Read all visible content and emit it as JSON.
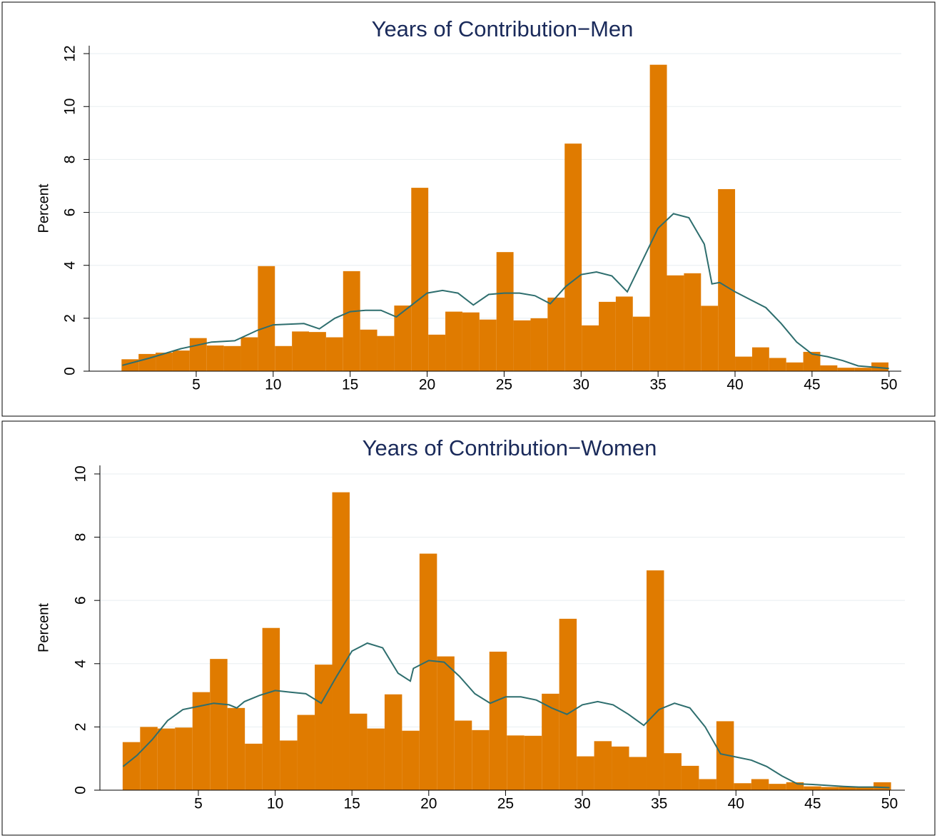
{
  "chart_data": [
    {
      "type": "histogram",
      "title": "Years of Contribution−Men",
      "y_label": "Percent",
      "color": "#e07b00",
      "bins": [
        0.15,
        1.257,
        2.364,
        3.471,
        4.578,
        5.685,
        6.792,
        7.899,
        9.006,
        10.113,
        11.22,
        12.327,
        13.434,
        14.541,
        15.648,
        16.755,
        17.862,
        18.969,
        20.076,
        21.183,
        22.29,
        23.397,
        24.504,
        25.611,
        26.718,
        27.825,
        28.932,
        30.039,
        31.146,
        32.253,
        33.36,
        34.467,
        35.574,
        36.681,
        37.788,
        38.895,
        40.002,
        41.109,
        42.216,
        43.323,
        44.43,
        45.537,
        46.644,
        47.751,
        48.858,
        49.965
      ],
      "values": [
        0.45,
        0.65,
        0.7,
        0.78,
        1.25,
        0.97,
        0.95,
        1.28,
        3.97,
        0.95,
        1.5,
        1.48,
        1.28,
        3.78,
        1.57,
        1.33,
        2.48,
        6.93,
        1.38,
        2.25,
        2.22,
        1.95,
        4.5,
        1.92,
        2.0,
        2.78,
        8.6,
        1.73,
        2.62,
        2.82,
        2.06,
        11.58,
        3.62,
        3.7,
        2.47,
        6.88,
        0.55,
        0.9,
        0.5,
        0.33,
        0.73,
        0.22,
        0.13,
        0.13,
        0.33
      ],
      "line": {
        "color": "#2e6e6e",
        "x": [
          0.2,
          2,
          4,
          6,
          7.5,
          9,
          10,
          12,
          13,
          14,
          15,
          16,
          17,
          18,
          19,
          20,
          21,
          22,
          23,
          24,
          25,
          26,
          27,
          28,
          29,
          30,
          31,
          32,
          33,
          34,
          35,
          36,
          37,
          38,
          38.5,
          39,
          40,
          41,
          42,
          43,
          44,
          45,
          46,
          47,
          48,
          49,
          50
        ],
        "values": [
          0.22,
          0.5,
          0.85,
          1.1,
          1.15,
          1.55,
          1.75,
          1.8,
          1.6,
          2.0,
          2.25,
          2.3,
          2.3,
          2.05,
          2.5,
          2.95,
          3.05,
          2.95,
          2.5,
          2.9,
          2.95,
          2.95,
          2.85,
          2.55,
          3.2,
          3.65,
          3.75,
          3.6,
          3.0,
          4.2,
          5.4,
          5.95,
          5.8,
          4.8,
          3.3,
          3.35,
          3.0,
          2.7,
          2.4,
          1.8,
          1.1,
          0.65,
          0.55,
          0.4,
          0.2,
          0.15,
          0.1
        ]
      },
      "xlim": [
        -1.95,
        50.8
      ],
      "ylim": [
        0,
        12.3
      ],
      "xticks": [
        5,
        10,
        15,
        20,
        25,
        30,
        35,
        40,
        45,
        50
      ],
      "yticks": [
        0,
        2,
        4,
        6,
        8,
        10,
        12
      ],
      "grid": true
    },
    {
      "type": "histogram",
      "title": "Years of Contribution−Women",
      "y_label": "Percent",
      "color": "#e07b00",
      "bins": [
        0.07,
        1.207,
        2.344,
        3.481,
        4.618,
        5.755,
        6.892,
        8.029,
        9.166,
        10.303,
        11.44,
        12.577,
        13.714,
        14.851,
        15.988,
        17.125,
        18.262,
        19.399,
        20.536,
        21.673,
        22.81,
        23.947,
        25.084,
        26.221,
        27.358,
        28.495,
        29.632,
        30.769,
        31.906,
        33.043,
        34.18,
        35.317,
        36.454,
        37.591,
        38.728,
        39.865,
        41.002,
        42.139,
        43.276,
        44.413,
        45.55,
        46.687,
        47.824,
        48.961,
        50.098
      ],
      "values": [
        1.52,
        2.0,
        1.95,
        1.98,
        3.1,
        4.15,
        2.6,
        1.47,
        5.13,
        1.57,
        2.38,
        3.97,
        9.42,
        2.42,
        1.95,
        3.03,
        1.88,
        7.48,
        4.23,
        2.2,
        1.9,
        4.38,
        1.73,
        1.72,
        3.05,
        5.42,
        1.07,
        1.55,
        1.38,
        1.05,
        6.95,
        1.17,
        0.77,
        0.35,
        2.18,
        0.22,
        0.35,
        0.2,
        0.25,
        0.12,
        0.1,
        0.1,
        0.1,
        0.25
      ],
      "line": {
        "color": "#2e6e6e",
        "x": [
          0.1,
          1,
          2,
          3,
          4,
          5,
          6,
          7,
          7.5,
          8,
          9,
          10,
          11,
          12,
          13,
          14,
          15,
          16,
          17,
          18,
          18.8,
          19,
          20,
          21,
          22,
          23,
          24,
          25,
          26,
          27,
          28,
          29,
          30,
          31,
          32,
          33,
          34,
          35,
          36,
          37,
          38,
          39,
          40,
          41,
          42,
          43,
          44,
          45,
          46,
          47,
          48,
          49,
          50
        ],
        "values": [
          0.75,
          1.1,
          1.6,
          2.2,
          2.55,
          2.65,
          2.75,
          2.7,
          2.6,
          2.8,
          3.0,
          3.15,
          3.1,
          3.05,
          2.75,
          3.6,
          4.4,
          4.65,
          4.5,
          3.7,
          3.45,
          3.85,
          4.1,
          4.05,
          3.6,
          3.05,
          2.75,
          2.95,
          2.95,
          2.85,
          2.6,
          2.4,
          2.7,
          2.8,
          2.7,
          2.4,
          2.05,
          2.55,
          2.75,
          2.6,
          2.0,
          1.15,
          1.05,
          0.95,
          0.75,
          0.45,
          0.2,
          0.18,
          0.15,
          0.12,
          0.1,
          0.1,
          0.08
        ]
      },
      "xlim": [
        -1.41,
        51.0
      ],
      "ylim": [
        0,
        10.27
      ],
      "xticks": [
        5,
        10,
        15,
        20,
        25,
        30,
        35,
        40,
        45,
        50
      ],
      "yticks": [
        0,
        2,
        4,
        6,
        8,
        10
      ],
      "grid": true
    }
  ]
}
